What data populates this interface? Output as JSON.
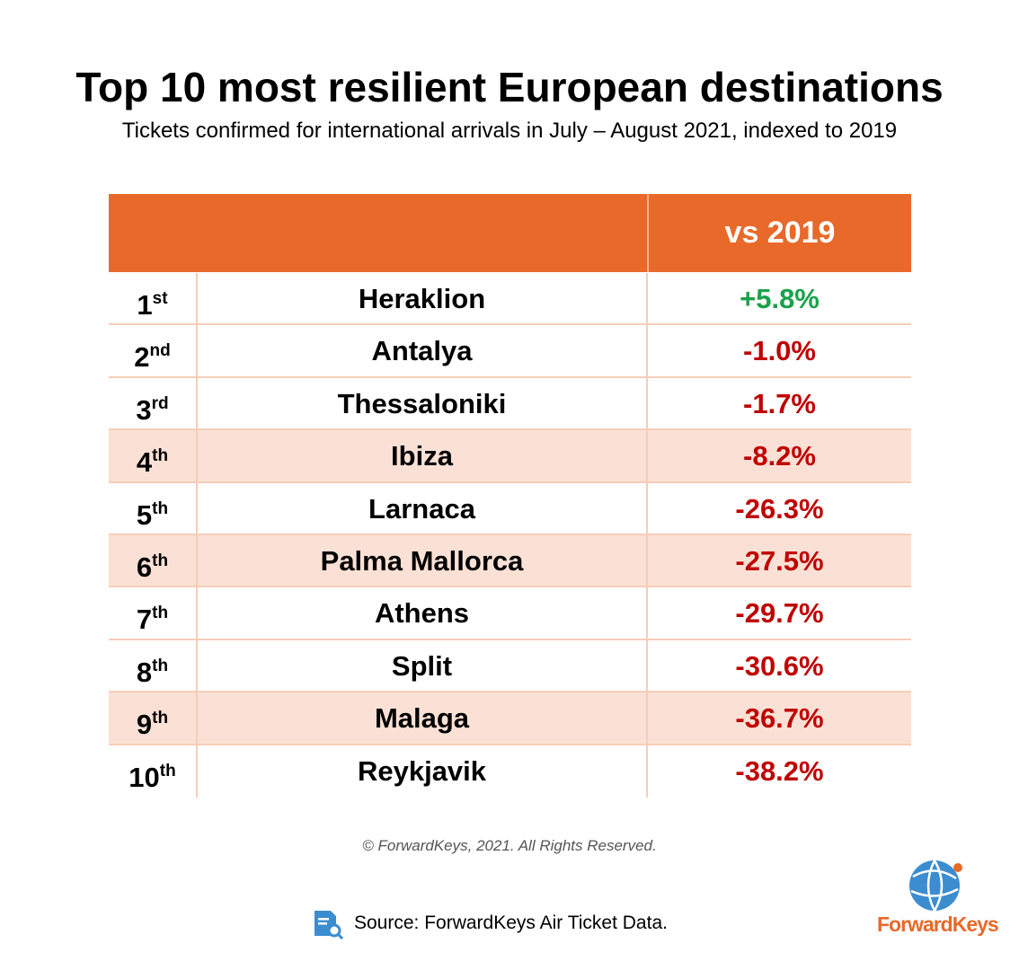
{
  "header": {
    "title": "Top 10 most resilient European destinations",
    "subtitle": "Tickets confirmed for international arrivals in July – August 2021, indexed to 2019"
  },
  "table": {
    "column_header": "vs 2019",
    "rows": [
      {
        "rank": "1",
        "suffix": "st",
        "destination": "Heraklion",
        "change": "+5.8%"
      },
      {
        "rank": "2",
        "suffix": "nd",
        "destination": "Antalya",
        "change": "-1.0%"
      },
      {
        "rank": "3",
        "suffix": "rd",
        "destination": "Thessaloniki",
        "change": "-1.7%"
      },
      {
        "rank": "4",
        "suffix": "th",
        "destination": "Ibiza",
        "change": "-8.2%"
      },
      {
        "rank": "5",
        "suffix": "th",
        "destination": "Larnaca",
        "change": "-26.3%"
      },
      {
        "rank": "6",
        "suffix": "th",
        "destination": "Palma Mallorca",
        "change": "-27.5%"
      },
      {
        "rank": "7",
        "suffix": "th",
        "destination": "Athens",
        "change": "-29.7%"
      },
      {
        "rank": "8",
        "suffix": "th",
        "destination": "Split",
        "change": "-30.6%"
      },
      {
        "rank": "9",
        "suffix": "th",
        "destination": "Malaga",
        "change": "-36.7%"
      },
      {
        "rank": "10",
        "suffix": "th",
        "destination": "Reykjavik",
        "change": "-38.2%"
      }
    ]
  },
  "footer": {
    "copyright": "© ForwardKeys, 2021. All Rights Reserved.",
    "source": "Source: ForwardKeys Air Ticket Data.",
    "logo": "ForwardKeys"
  }
}
